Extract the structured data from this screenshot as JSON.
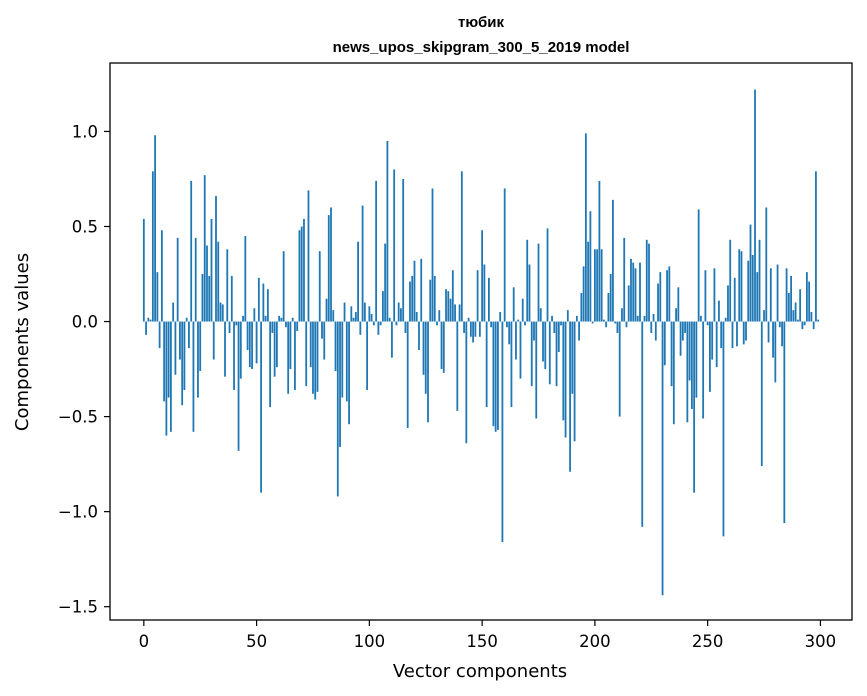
{
  "chart_data": {
    "type": "bar",
    "title_line1": "тюбик",
    "title_line2": "news_upos_skipgram_300_5_2019 model",
    "xlabel": "Vector components",
    "ylabel": "Components values",
    "xlim": [
      -15,
      314
    ],
    "ylim": [
      -1.57,
      1.36
    ],
    "xticks": [
      0,
      50,
      100,
      150,
      200,
      250,
      300
    ],
    "xtick_labels": [
      "0",
      "50",
      "100",
      "150",
      "200",
      "250",
      "300"
    ],
    "yticks": [
      -1.5,
      -1.0,
      -0.5,
      0.0,
      0.5,
      1.0
    ],
    "ytick_labels": [
      "−1.5",
      "−1.0",
      "−0.5",
      "0.0",
      "0.5",
      "1.0"
    ],
    "bar_color": "#1f77b4",
    "grid": false,
    "legend": "none",
    "x_start": 0,
    "values": [
      0.54,
      -0.07,
      0.02,
      0.01,
      0.79,
      0.98,
      0.26,
      -0.14,
      0.48,
      -0.42,
      -0.6,
      -0.4,
      -0.58,
      0.1,
      -0.28,
      0.44,
      -0.2,
      -0.44,
      -0.36,
      0.02,
      -0.14,
      0.74,
      -0.58,
      0.44,
      -0.4,
      -0.26,
      0.25,
      0.77,
      0.4,
      0.24,
      0.54,
      -0.2,
      0.66,
      0.42,
      0.1,
      0.09,
      -0.29,
      0.38,
      -0.06,
      0.24,
      -0.36,
      -0.02,
      -0.68,
      -0.3,
      0.03,
      0.45,
      -0.15,
      -0.24,
      -0.25,
      0.07,
      -0.22,
      0.23,
      -0.9,
      0.2,
      0.03,
      0.17,
      -0.45,
      -0.06,
      -0.29,
      -0.24,
      0.03,
      0.02,
      0.37,
      -0.03,
      -0.38,
      -0.25,
      0.02,
      -0.36,
      -0.05,
      0.48,
      0.5,
      0.54,
      -0.34,
      0.69,
      -0.24,
      -0.38,
      -0.41,
      -0.37,
      0.37,
      -0.09,
      -0.2,
      0.12,
      0.56,
      0.6,
      0.06,
      -0.26,
      -0.92,
      -0.66,
      -0.4,
      0.1,
      -0.42,
      -0.54,
      0.08,
      0.02,
      0.05,
      0.42,
      -0.07,
      0.61,
      0.1,
      -0.36,
      0.08,
      0.04,
      -0.02,
      0.74,
      -0.07,
      -0.02,
      0.16,
      0.41,
      0.95,
      0.02,
      -0.19,
      0.8,
      -0.02,
      0.1,
      0.07,
      0.75,
      -0.06,
      -0.56,
      0.21,
      0.24,
      0.32,
      0.05,
      -0.15,
      0.33,
      -0.28,
      -0.38,
      -0.53,
      0.22,
      0.7,
      0.24,
      -0.02,
      0.06,
      -0.25,
      -0.27,
      0.17,
      0.16,
      0.12,
      0.27,
      0.09,
      -0.47,
      0.09,
      0.79,
      -0.06,
      -0.64,
      0.02,
      -0.08,
      -0.11,
      -0.08,
      0.27,
      -0.08,
      0.48,
      0.3,
      -0.45,
      0.23,
      -0.03,
      -0.55,
      -0.58,
      -0.57,
      0.05,
      -1.16,
      0.7,
      -0.03,
      -0.12,
      -0.45,
      0.18,
      -0.2,
      0.01,
      -0.3,
      0.12,
      -0.02,
      0.43,
      0.3,
      -0.34,
      -0.1,
      -0.51,
      0.41,
      0.07,
      -0.21,
      -0.25,
      0.49,
      -0.33,
      0.03,
      -0.06,
      -0.34,
      -0.16,
      -0.02,
      -0.52,
      -0.61,
      0.06,
      -0.79,
      -0.38,
      -0.63,
      0.03,
      -0.1,
      0.15,
      0.29,
      0.99,
      0.42,
      0.58,
      -0.01,
      0.38,
      0.38,
      0.74,
      0.38,
      0.01,
      -0.03,
      0.15,
      0.25,
      0.64,
      -0.01,
      -0.06,
      -0.5,
      0.07,
      0.44,
      -0.03,
      0.19,
      0.33,
      0.31,
      0.28,
      0.03,
      0.31,
      -1.08,
      0.03,
      0.43,
      0.41,
      -0.06,
      0.04,
      -0.1,
      0.2,
      0.26,
      -1.44,
      -0.23,
      0.27,
      0.29,
      -0.34,
      -0.54,
      0.07,
      0.18,
      -0.18,
      -0.1,
      -0.06,
      -0.53,
      -0.31,
      -0.46,
      -0.9,
      -0.4,
      0.59,
      0.03,
      -0.51,
      0.27,
      -0.02,
      -0.37,
      -0.2,
      0.28,
      -0.24,
      0.11,
      -0.14,
      -1.13,
      0.02,
      0.19,
      0.43,
      -0.14,
      0.23,
      -0.13,
      0.38,
      0.37,
      -0.12,
      -0.1,
      0.32,
      0.51,
      0.35,
      1.22,
      0.26,
      0.43,
      -0.76,
      0.06,
      0.6,
      -0.11,
      0.28,
      -0.19,
      -0.32,
      0.3,
      -0.03,
      -0.13,
      -1.06,
      0.28,
      0.15,
      0.24,
      0.06,
      0.1,
      0.01,
      0.17,
      -0.04,
      -0.02,
      0.26,
      0.21,
      0.05,
      -0.04,
      0.79,
      0.01
    ]
  }
}
